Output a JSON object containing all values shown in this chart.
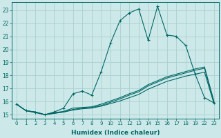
{
  "xlabel": "Humidex (Indice chaleur)",
  "bg_color": "#cce8e8",
  "grid_color": "#aad0d0",
  "line_color": "#006666",
  "xtick_positions": [
    0,
    1,
    2,
    3,
    4,
    5,
    6,
    7,
    8,
    9,
    10,
    11,
    12,
    13,
    14,
    15,
    16,
    17,
    18,
    19,
    20,
    21
  ],
  "xtick_labels": [
    "0",
    "1",
    "2",
    "3",
    "4",
    "5",
    "6",
    "7",
    "8",
    "9",
    "10",
    "11",
    "12",
    "13",
    "14",
    "15",
    "16",
    "17",
    "18",
    "19",
    "22",
    "23"
  ],
  "yticks": [
    15,
    16,
    17,
    18,
    19,
    20,
    21,
    22,
    23
  ],
  "xlim": [
    -0.5,
    21.5
  ],
  "ylim": [
    14.7,
    23.6
  ],
  "series": [
    {
      "x": [
        0,
        1,
        2,
        3,
        4,
        5,
        6,
        7,
        8,
        9,
        10,
        11,
        12,
        13,
        14,
        15,
        16,
        17,
        18,
        19,
        20,
        21
      ],
      "y": [
        15.8,
        15.3,
        15.2,
        15.0,
        15.1,
        15.2,
        15.35,
        15.45,
        15.5,
        15.65,
        15.85,
        16.05,
        16.3,
        16.55,
        16.95,
        17.25,
        17.55,
        17.75,
        17.95,
        18.1,
        18.25,
        15.85
      ],
      "marker": null
    },
    {
      "x": [
        0,
        1,
        2,
        3,
        4,
        5,
        6,
        7,
        8,
        9,
        10,
        11,
        12,
        13,
        14,
        15,
        16,
        17,
        18,
        19,
        20,
        21
      ],
      "y": [
        15.8,
        15.3,
        15.2,
        15.0,
        15.1,
        15.2,
        15.4,
        15.5,
        15.55,
        15.7,
        15.95,
        16.2,
        16.5,
        16.75,
        17.2,
        17.5,
        17.8,
        18.0,
        18.2,
        18.4,
        18.55,
        15.95
      ],
      "marker": null
    },
    {
      "x": [
        0,
        1,
        2,
        3,
        4,
        5,
        6,
        7,
        8,
        9,
        10,
        11,
        12,
        13,
        14,
        15,
        16,
        17,
        18,
        19,
        20,
        21
      ],
      "y": [
        15.8,
        15.3,
        15.2,
        15.0,
        15.15,
        15.25,
        15.5,
        15.55,
        15.6,
        15.8,
        16.05,
        16.3,
        16.6,
        16.85,
        17.3,
        17.6,
        17.9,
        18.1,
        18.3,
        18.5,
        18.65,
        16.05
      ],
      "marker": null
    },
    {
      "x": [
        0,
        1,
        2,
        3,
        4,
        5,
        6,
        7,
        8,
        9,
        10,
        11,
        12,
        13,
        14,
        15,
        16,
        17,
        18,
        19,
        20,
        21
      ],
      "y": [
        15.8,
        15.3,
        15.15,
        15.0,
        15.2,
        15.5,
        16.6,
        16.8,
        16.5,
        18.3,
        20.5,
        22.2,
        22.8,
        23.1,
        20.7,
        23.3,
        21.1,
        21.0,
        20.3,
        18.1,
        16.3,
        15.9
      ],
      "marker": "+"
    }
  ]
}
